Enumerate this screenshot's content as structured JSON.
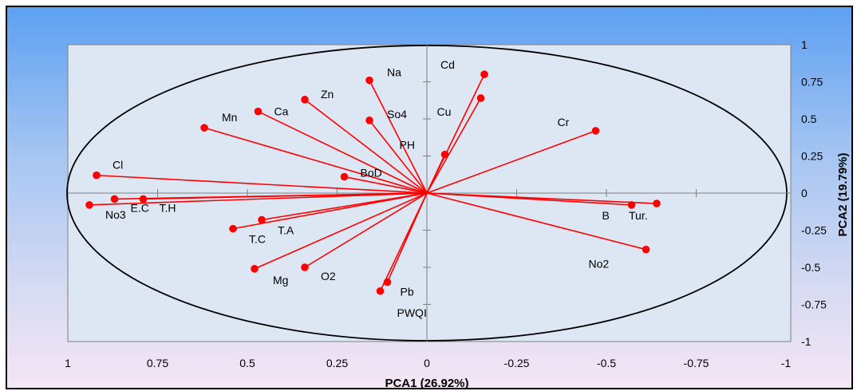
{
  "chart_data": {
    "type": "scatter",
    "subtype": "biplot-vectors",
    "xlabel": "PCA1 (26.92%)",
    "ylabel": "PCA2 (19.79%)",
    "xlim": [
      1,
      -1
    ],
    "ylim": [
      -1,
      1
    ],
    "x_reversed": true,
    "x_ticks": [
      "1",
      "0.75",
      "0.5",
      "0.25",
      "0",
      "-0.25",
      "-0.5",
      "-0.75",
      "-1"
    ],
    "y_ticks": [
      "1",
      "0.75",
      "0.5",
      "0.25",
      "0",
      "-0.25",
      "-0.5",
      "-0.75",
      "-1"
    ],
    "grid": false,
    "correlation_circle": true,
    "vector_color": "#ff0000",
    "points": [
      {
        "label": "Cd",
        "x": -0.16,
        "y": 0.8
      },
      {
        "label": "Cu",
        "x": -0.15,
        "y": 0.64
      },
      {
        "label": "Na",
        "x": 0.16,
        "y": 0.76
      },
      {
        "label": "Zn",
        "x": 0.34,
        "y": 0.63
      },
      {
        "label": "Ca",
        "x": 0.47,
        "y": 0.55
      },
      {
        "label": "Mn",
        "x": 0.62,
        "y": 0.44
      },
      {
        "label": "So4",
        "x": 0.16,
        "y": 0.49
      },
      {
        "label": "PH",
        "x": -0.05,
        "y": 0.26
      },
      {
        "label": "Cr",
        "x": -0.47,
        "y": 0.42
      },
      {
        "label": "Cl",
        "x": 0.92,
        "y": 0.12
      },
      {
        "label": "BoD",
        "x": 0.23,
        "y": 0.11
      },
      {
        "label": "E.C",
        "x": 0.87,
        "y": -0.04
      },
      {
        "label": "T.H",
        "x": 0.79,
        "y": -0.04
      },
      {
        "label": "No3",
        "x": 0.94,
        "y": -0.08
      },
      {
        "label": "T.A",
        "x": 0.46,
        "y": -0.18
      },
      {
        "label": "T.C",
        "x": 0.54,
        "y": -0.24
      },
      {
        "label": "Mg",
        "x": 0.48,
        "y": -0.51
      },
      {
        "label": "O2",
        "x": 0.34,
        "y": -0.5
      },
      {
        "label": "Pb",
        "x": 0.11,
        "y": -0.6
      },
      {
        "label": "PWQI",
        "x": 0.13,
        "y": -0.66
      },
      {
        "label": "B",
        "x": -0.57,
        "y": -0.08
      },
      {
        "label": "Tur.",
        "x": -0.64,
        "y": -0.07
      },
      {
        "label": "No2",
        "x": -0.61,
        "y": -0.38
      }
    ]
  }
}
